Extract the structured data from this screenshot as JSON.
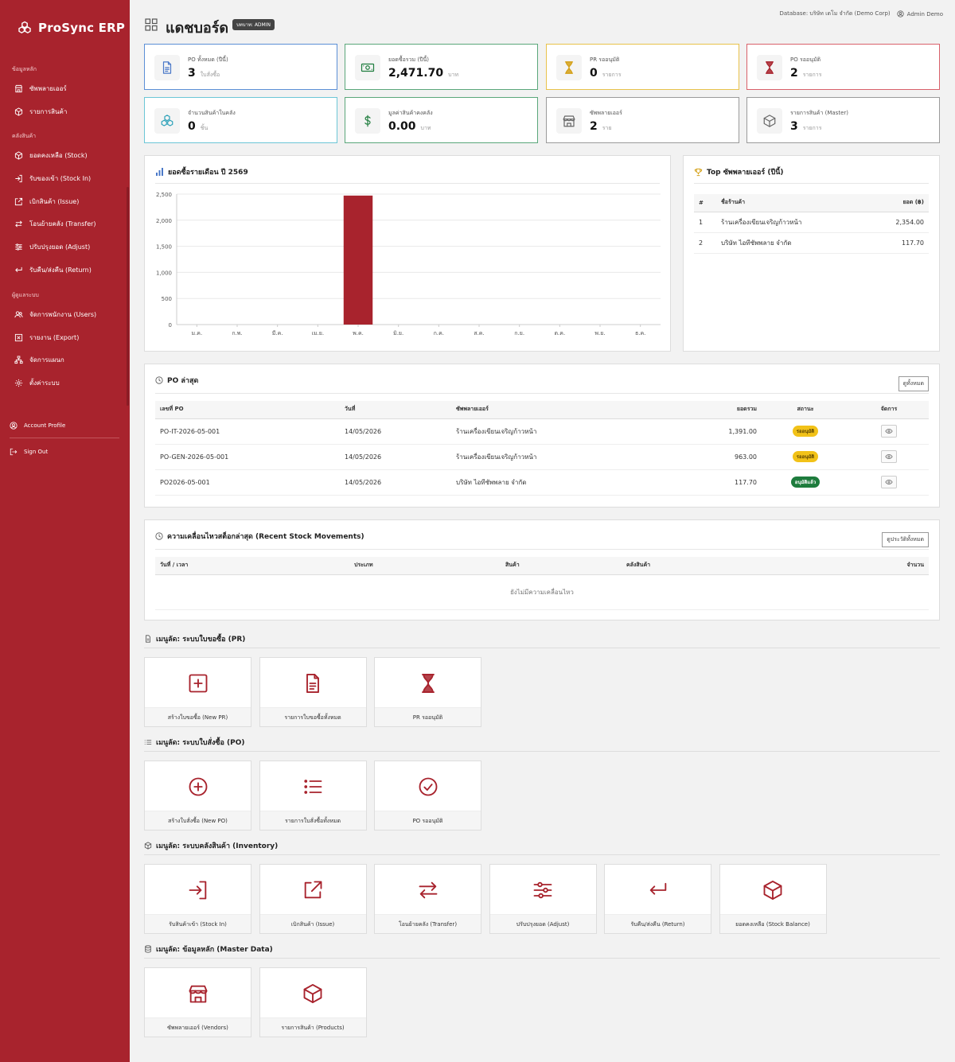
{
  "app": {
    "name": "ProSync ERP"
  },
  "sidebar": {
    "sections": [
      {
        "label": "ข้อมูลหลัก"
      },
      {
        "label": "คลังสินค้า"
      },
      {
        "label": "ผู้ดูแลระบบ"
      }
    ],
    "items": [
      {
        "label": "ซัพพลายเออร์",
        "icon": "store-icon"
      },
      {
        "label": "รายการสินค้า",
        "icon": "box-icon"
      },
      {
        "label": "ยอดคงเหลือ (Stock)",
        "icon": "box-icon"
      },
      {
        "label": "รับของเข้า (Stock In)",
        "icon": "login-icon"
      },
      {
        "label": "เบิกสินค้า (Issue)",
        "icon": "external-icon"
      },
      {
        "label": "โอนย้ายคลัง (Transfer)",
        "icon": "arrows-icon"
      },
      {
        "label": "ปรับปรุงยอด (Adjust)",
        "icon": "sliders-icon"
      },
      {
        "label": "รับคืน/ส่งคืน (Return)",
        "icon": "return-icon"
      },
      {
        "label": "จัดการพนักงาน (Users)",
        "icon": "users-icon"
      },
      {
        "label": "รายงาน (Export)",
        "icon": "excel-icon"
      },
      {
        "label": "จัดการแผนก",
        "icon": "org-icon"
      },
      {
        "label": "ตั้งค่าระบบ",
        "icon": "gear-icon"
      }
    ],
    "account": "Account Profile",
    "signout": "Sign Out"
  },
  "header": {
    "title": "แดชบอร์ด",
    "role": "บทบาท: ADMIN",
    "database": "Database: บริษัท เดโม จำกัด (Demo Corp)",
    "user": "Admin Demo"
  },
  "stats": [
    {
      "label": "PO ทั้งหมด (ปีนี้)",
      "value": "3",
      "unit": "ใบสั่งซื้อ",
      "color": "#5b8fd6",
      "icon": "document-icon"
    },
    {
      "label": "ยอดซื้อรวม (ปีนี้)",
      "value": "2,471.70",
      "unit": "บาท",
      "color": "#5aa77a",
      "icon": "cash-icon"
    },
    {
      "label": "PR รออนุมัติ",
      "value": "0",
      "unit": "รายการ",
      "color": "#e8c24a",
      "icon": "hourglass-icon"
    },
    {
      "label": "PO รออนุมัติ",
      "value": "2",
      "unit": "รายการ",
      "color": "#d9606a",
      "icon": "hourglass-icon"
    },
    {
      "label": "จำนวนสินค้าในคลัง",
      "value": "0",
      "unit": "ชิ้น",
      "color": "#6cc6d6",
      "icon": "boxes-icon"
    },
    {
      "label": "มูลค่าสินค้าคงคลัง",
      "value": "0.00",
      "unit": "บาท",
      "color": "#5aa77a",
      "icon": "dollar-icon"
    },
    {
      "label": "ซัพพลายเออร์",
      "value": "2",
      "unit": "ราย",
      "color": "#9a9a9a",
      "icon": "store-icon"
    },
    {
      "label": "รายการสินค้า (Master)",
      "value": "3",
      "unit": "รายการ",
      "color": "#9a9a9a",
      "icon": "box-icon"
    }
  ],
  "chart_panel": {
    "title": "ยอดซื้อรายเดือน ปี 2569"
  },
  "chart_data": {
    "type": "bar",
    "title": "ยอดซื้อรายเดือน ปี 2569",
    "categories": [
      "ม.ค.",
      "ก.พ.",
      "มี.ค.",
      "เม.ย.",
      "พ.ค.",
      "มิ.ย.",
      "ก.ค.",
      "ส.ค.",
      "ก.ย.",
      "ต.ค.",
      "พ.ย.",
      "ธ.ค."
    ],
    "values": [
      0,
      0,
      0,
      0,
      2471.7,
      0,
      0,
      0,
      0,
      0,
      0,
      0
    ],
    "yticks": [
      "0",
      "500",
      "1,000",
      "1,500",
      "2,000",
      "2,500"
    ],
    "ylim": [
      0,
      2500
    ],
    "bar_color": "#a8232d",
    "grid": true
  },
  "top_vendors": {
    "title": "Top ซัพพลายเออร์ (ปีนี้)",
    "headers": [
      "#",
      "ชื่อร้านค้า",
      "ยอด (฿)"
    ],
    "rows": [
      {
        "rank": "1",
        "name": "ร้านเครื่องเขียนเจริญก้าวหน้า",
        "amount": "2,354.00"
      },
      {
        "rank": "2",
        "name": "บริษัท ไอทีซัพพลาย จำกัด",
        "amount": "117.70"
      }
    ]
  },
  "latest_po": {
    "title": "PO ล่าสุด",
    "view_all": "ดูทั้งหมด",
    "headers": [
      "เลขที่ PO",
      "วันที่",
      "ซัพพลายเออร์",
      "ยอดรวม",
      "สถานะ",
      "จัดการ"
    ],
    "rows": [
      {
        "no": "PO-IT-2026-05-001",
        "date": "14/05/2026",
        "vendor": "ร้านเครื่องเขียนเจริญก้าวหน้า",
        "total": "1,391.00",
        "status": "รออนุมัติ",
        "status_type": "pending"
      },
      {
        "no": "PO-GEN-2026-05-001",
        "date": "14/05/2026",
        "vendor": "ร้านเครื่องเขียนเจริญก้าวหน้า",
        "total": "963.00",
        "status": "รออนุมัติ",
        "status_type": "pending"
      },
      {
        "no": "PO2026-05-001",
        "date": "14/05/2026",
        "vendor": "บริษัท ไอทีซัพพลาย จำกัด",
        "total": "117.70",
        "status": "อนุมัติแล้ว",
        "status_type": "approved"
      }
    ]
  },
  "stock_moves": {
    "title": "ความเคลื่อนไหวสต็อกล่าสุด (Recent Stock Movements)",
    "view_all": "ดูประวัติทั้งหมด",
    "headers": [
      "วันที่ / เวลา",
      "ประเภท",
      "สินค้า",
      "คลังสินค้า",
      "จำนวน"
    ],
    "empty": "ยังไม่มีความเคลื่อนไหว"
  },
  "quick_pr": {
    "title": "เมนูลัด: ระบบใบขอซื้อ (PR)",
    "tiles": [
      {
        "label": "สร้างใบขอซื้อ (New PR)",
        "icon": "plus-square-icon"
      },
      {
        "label": "รายการใบขอซื้อทั้งหมด",
        "icon": "document-icon"
      },
      {
        "label": "PR รออนุมัติ",
        "icon": "hourglass-icon"
      }
    ]
  },
  "quick_po": {
    "title": "เมนูลัด: ระบบใบสั่งซื้อ (PO)",
    "tiles": [
      {
        "label": "สร้างใบสั่งซื้อ (New PO)",
        "icon": "plus-circle-icon"
      },
      {
        "label": "รายการใบสั่งซื้อทั้งหมด",
        "icon": "list-icon"
      },
      {
        "label": "PO รออนุมัติ",
        "icon": "check-circle-icon"
      }
    ]
  },
  "quick_inv": {
    "title": "เมนูลัด: ระบบคลังสินค้า (Inventory)",
    "tiles": [
      {
        "label": "รับสินค้าเข้า (Stock In)",
        "icon": "login-icon"
      },
      {
        "label": "เบิกสินค้า (Issue)",
        "icon": "external-icon"
      },
      {
        "label": "โอนย้ายคลัง (Transfer)",
        "icon": "arrows-icon"
      },
      {
        "label": "ปรับปรุงยอด (Adjust)",
        "icon": "sliders-icon"
      },
      {
        "label": "รับคืน/ส่งคืน (Return)",
        "icon": "return-icon"
      },
      {
        "label": "ยอดคงเหลือ (Stock Balance)",
        "icon": "box-icon"
      }
    ]
  },
  "quick_master": {
    "title": "เมนูลัด: ข้อมูลหลัก (Master Data)",
    "tiles": [
      {
        "label": "ซัพพลายเออร์ (Vendors)",
        "icon": "store-icon"
      },
      {
        "label": "รายการสินค้า (Products)",
        "icon": "box-icon"
      }
    ]
  }
}
